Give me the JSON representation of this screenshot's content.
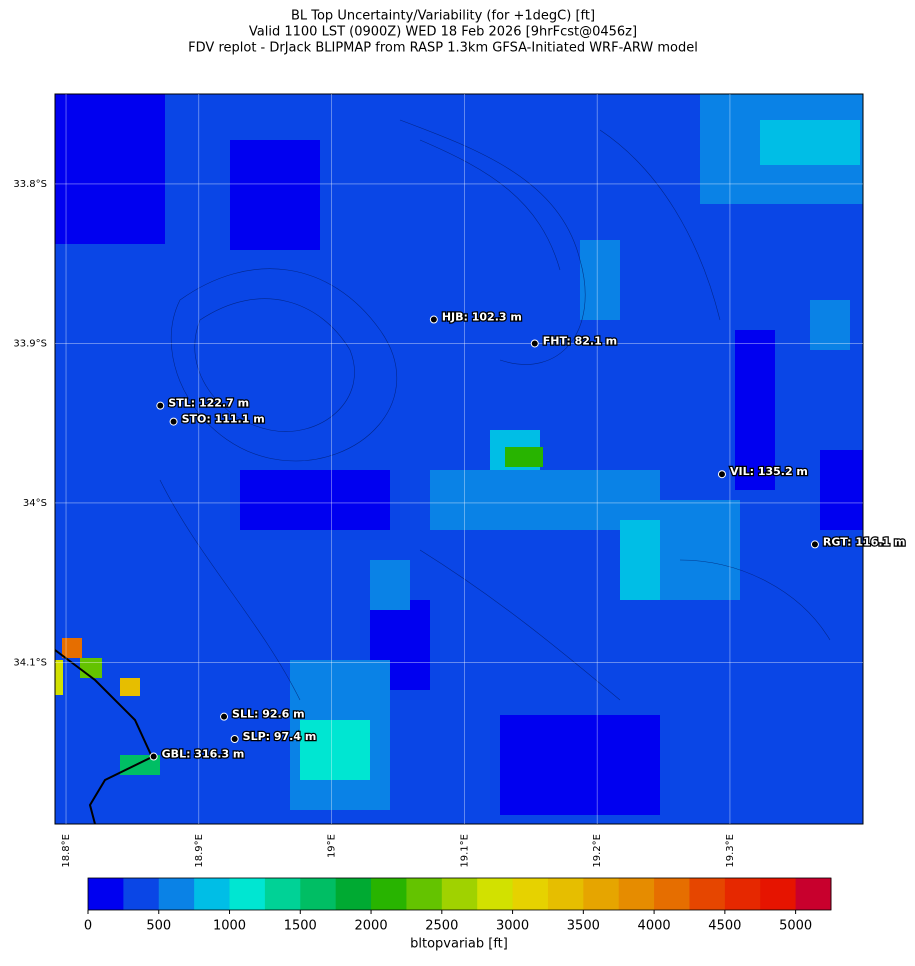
{
  "title": [
    "BL Top Uncertainty/Variability (for +1degC) [ft]",
    "Valid 1100 LST (0900Z) WED 18 Feb 2026 [9hrFcst@0456z]",
    "FDV replot - DrJack BLIPMAP from RASP 1.3km GFSA-Initiated WRF-ARW model"
  ],
  "map": {
    "lonlim": [
      18.7917,
      19.4002
    ],
    "latlim": [
      -33.7436,
      -34.2013
    ],
    "lat_ticks": [
      {
        "value": -33.8,
        "label": "33.8°S"
      },
      {
        "value": -33.9,
        "label": "33.9°S"
      },
      {
        "value": -34.0,
        "label": "34°S"
      },
      {
        "value": -34.1,
        "label": "34.1°S"
      }
    ],
    "lon_ticks": [
      {
        "value": 18.8,
        "label": "18.8°E"
      },
      {
        "value": 18.9,
        "label": "18.9°E"
      },
      {
        "value": 19.0,
        "label": "19°E"
      },
      {
        "value": 19.1,
        "label": "19.1°E"
      },
      {
        "value": 19.2,
        "label": "19.2°E"
      },
      {
        "value": 19.3,
        "label": "19.3°E"
      }
    ],
    "stations": [
      {
        "label": "HJB: 102.3 m",
        "lon": 19.077,
        "lat": -33.885
      },
      {
        "label": "FHT: 82.1 m",
        "lon": 19.153,
        "lat": -33.9
      },
      {
        "label": "STL: 122.7 m",
        "lon": 18.871,
        "lat": -33.939
      },
      {
        "label": "STO: 111.1 m",
        "lon": 18.881,
        "lat": -33.949
      },
      {
        "label": "VIL: 135.2 m",
        "lon": 19.294,
        "lat": -33.982
      },
      {
        "label": "RGT: 116.1 m",
        "lon": 19.364,
        "lat": -34.026
      },
      {
        "label": "SLL: 92.6 m",
        "lon": 18.919,
        "lat": -34.134
      },
      {
        "label": "SLP: 97.4 m",
        "lon": 18.927,
        "lat": -34.148
      },
      {
        "label": "GBL: 316.3 m",
        "lon": 18.866,
        "lat": -34.159
      }
    ]
  },
  "colorbar": {
    "label": "bltopvariab [ft]",
    "range": [
      0,
      5250
    ],
    "ticks": [
      0,
      500,
      1000,
      1500,
      2000,
      2500,
      3000,
      3500,
      4000,
      4500,
      5000
    ],
    "colors": [
      "#0000f0",
      "#0a46e6",
      "#0a82e6",
      "#00bee6",
      "#00e6d2",
      "#00d296",
      "#00be64",
      "#00aa32",
      "#28b400",
      "#64c300",
      "#a0d200",
      "#d2e100",
      "#e6d200",
      "#e6be00",
      "#e6a500",
      "#e68c00",
      "#e66e00",
      "#e64600",
      "#e62800",
      "#e61400",
      "#c8002d"
    ]
  }
}
